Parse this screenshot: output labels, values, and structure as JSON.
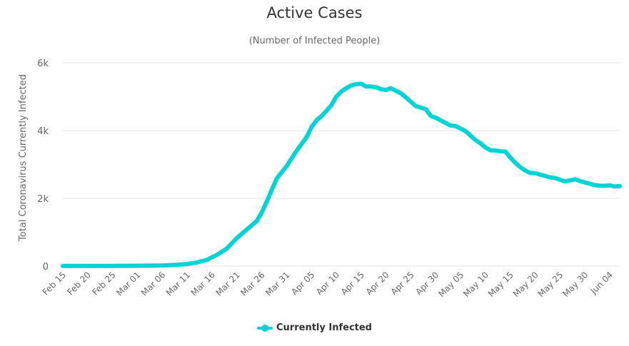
{
  "chart_data": {
    "type": "line",
    "title": "Active Cases",
    "subtitle": "(Number of Infected People)",
    "ylabel": "Total Coronavirus Currently Infected",
    "xlabel": "",
    "ylim": [
      0,
      6000
    ],
    "y_ticks": [
      0,
      2000,
      4000,
      6000
    ],
    "y_tick_labels": [
      "0",
      "2k",
      "4k",
      "6k"
    ],
    "x_tick_labels": [
      "Feb 15",
      "Feb 20",
      "Feb 25",
      "Mar 01",
      "Mar 06",
      "Mar 11",
      "Mar 16",
      "Mar 21",
      "Mar 26",
      "Mar 31",
      "Apr 05",
      "Apr 10",
      "Apr 15",
      "Apr 20",
      "Apr 25",
      "Apr 30",
      "May 05",
      "May 10",
      "May 15",
      "May 20",
      "May 25",
      "May 30",
      "Jun 04"
    ],
    "grid": true,
    "legend_position": "bottom-center",
    "line_color": "#00d4d4",
    "series": [
      {
        "name": "Currently Infected",
        "x": [
          "Feb 15",
          "Feb 20",
          "Feb 25",
          "Mar 01",
          "Mar 06",
          "Mar 09",
          "Mar 11",
          "Mar 13",
          "Mar 15",
          "Mar 16",
          "Mar 17",
          "Mar 19",
          "Mar 21",
          "Mar 23",
          "Mar 25",
          "Mar 26",
          "Mar 27",
          "Mar 29",
          "Mar 31",
          "Apr 02",
          "Apr 04",
          "Apr 05",
          "Apr 06",
          "Apr 07",
          "Apr 08",
          "Apr 09",
          "Apr 10",
          "Apr 11",
          "Apr 12",
          "Apr 13",
          "Apr 14",
          "Apr 15",
          "Apr 16",
          "Apr 17",
          "Apr 18",
          "Apr 19",
          "Apr 20",
          "Apr 21",
          "Apr 22",
          "Apr 23",
          "Apr 24",
          "Apr 25",
          "Apr 26",
          "Apr 27",
          "Apr 28",
          "Apr 29",
          "Apr 30",
          "May 01",
          "May 02",
          "May 03",
          "May 04",
          "May 05",
          "May 06",
          "May 07",
          "May 08",
          "May 09",
          "May 10",
          "May 11",
          "May 12",
          "May 13",
          "May 14",
          "May 15",
          "May 16",
          "May 17",
          "May 18",
          "May 19",
          "May 20",
          "May 21",
          "May 22",
          "May 23",
          "May 24",
          "May 25",
          "May 26",
          "May 27",
          "May 28",
          "May 29",
          "May 30",
          "May 31",
          "Jun 01",
          "Jun 02",
          "Jun 03",
          "Jun 04",
          "Jun 05",
          "Jun 06"
        ],
        "values": [
          5,
          5,
          5,
          10,
          20,
          40,
          60,
          110,
          180,
          260,
          330,
          520,
          830,
          1080,
          1330,
          1580,
          1900,
          2580,
          2950,
          3400,
          3800,
          4100,
          4300,
          4420,
          4580,
          4750,
          5000,
          5150,
          5250,
          5330,
          5370,
          5380,
          5300,
          5300,
          5280,
          5220,
          5200,
          5250,
          5170,
          5100,
          4980,
          4850,
          4720,
          4680,
          4630,
          4430,
          4380,
          4300,
          4220,
          4150,
          4130,
          4060,
          3980,
          3850,
          3720,
          3620,
          3500,
          3420,
          3410,
          3390,
          3380,
          3200,
          3050,
          2920,
          2820,
          2750,
          2740,
          2700,
          2660,
          2620,
          2600,
          2550,
          2500,
          2530,
          2560,
          2510,
          2470,
          2430,
          2390,
          2370,
          2370,
          2380,
          2350,
          2360
        ]
      }
    ]
  }
}
